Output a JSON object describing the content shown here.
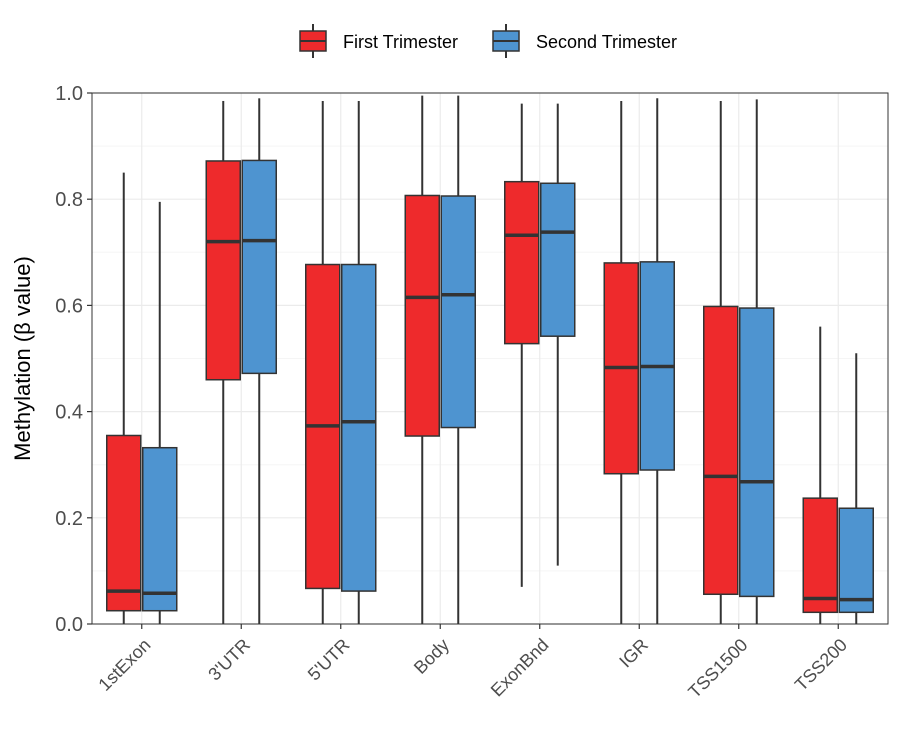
{
  "chart_data": {
    "type": "boxplot",
    "xlabel": "",
    "ylabel": "Methylation (β value)",
    "ylim": [
      0,
      1.0
    ],
    "yticks": [
      "0.0",
      "0.2",
      "0.4",
      "0.6",
      "0.8",
      "1.0"
    ],
    "grid": true,
    "legend_position": "top",
    "categories": [
      "1stExon",
      "3'UTR",
      "5'UTR",
      "Body",
      "ExonBnd",
      "IGR",
      "TSS1500",
      "TSS200"
    ],
    "series": [
      {
        "name": "First Trimester",
        "color": "#ee2a2c",
        "boxes": [
          {
            "min": 0.0,
            "q1": 0.025,
            "median": 0.062,
            "q3": 0.355,
            "max": 0.85
          },
          {
            "min": 0.0,
            "q1": 0.46,
            "median": 0.72,
            "q3": 0.872,
            "max": 0.985
          },
          {
            "min": 0.0,
            "q1": 0.067,
            "median": 0.373,
            "q3": 0.677,
            "max": 0.985
          },
          {
            "min": 0.0,
            "q1": 0.354,
            "median": 0.615,
            "q3": 0.807,
            "max": 0.995
          },
          {
            "min": 0.07,
            "q1": 0.528,
            "median": 0.732,
            "q3": 0.833,
            "max": 0.98
          },
          {
            "min": 0.0,
            "q1": 0.283,
            "median": 0.483,
            "q3": 0.68,
            "max": 0.985
          },
          {
            "min": 0.0,
            "q1": 0.056,
            "median": 0.278,
            "q3": 0.598,
            "max": 0.985
          },
          {
            "min": 0.0,
            "q1": 0.022,
            "median": 0.048,
            "q3": 0.237,
            "max": 0.56
          }
        ]
      },
      {
        "name": "Second Trimester",
        "color": "#4e94d0",
        "boxes": [
          {
            "min": 0.0,
            "q1": 0.025,
            "median": 0.058,
            "q3": 0.332,
            "max": 0.795
          },
          {
            "min": 0.0,
            "q1": 0.472,
            "median": 0.722,
            "q3": 0.873,
            "max": 0.99
          },
          {
            "min": 0.0,
            "q1": 0.062,
            "median": 0.381,
            "q3": 0.677,
            "max": 0.985
          },
          {
            "min": 0.0,
            "q1": 0.37,
            "median": 0.62,
            "q3": 0.806,
            "max": 0.995
          },
          {
            "min": 0.11,
            "q1": 0.542,
            "median": 0.738,
            "q3": 0.83,
            "max": 0.98
          },
          {
            "min": 0.0,
            "q1": 0.29,
            "median": 0.485,
            "q3": 0.682,
            "max": 0.99
          },
          {
            "min": 0.0,
            "q1": 0.052,
            "median": 0.268,
            "q3": 0.595,
            "max": 0.988
          },
          {
            "min": 0.0,
            "q1": 0.022,
            "median": 0.046,
            "q3": 0.218,
            "max": 0.51
          }
        ]
      }
    ]
  },
  "colors": {
    "border": "#333333",
    "grid_major": "#ebebeb",
    "grid_minor": "#f5f5f5",
    "panel_border": "#333333"
  }
}
